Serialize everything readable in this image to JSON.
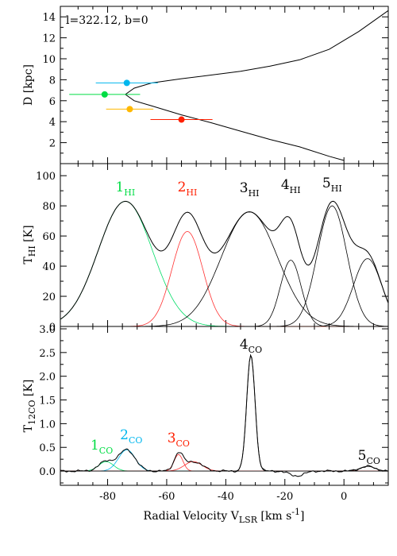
{
  "chart_data": [
    {
      "type": "line",
      "panel": "distance",
      "annotation": "l=322.12, b=0",
      "ylabel": "D [kpc]",
      "ylim": [
        0,
        15
      ],
      "xlim": [
        -96,
        15
      ],
      "yticks": [
        "2",
        "4",
        "6",
        "8",
        "10",
        "12",
        "14"
      ],
      "grid": false,
      "curve": [
        {
          "x": 15,
          "y": 14.6
        },
        {
          "x": 5,
          "y": 12.6
        },
        {
          "x": -5,
          "y": 10.9
        },
        {
          "x": -15,
          "y": 9.9
        },
        {
          "x": -25,
          "y": 9.3
        },
        {
          "x": -35,
          "y": 8.8
        },
        {
          "x": -45,
          "y": 8.45
        },
        {
          "x": -55,
          "y": 8.1
        },
        {
          "x": -65,
          "y": 7.7
        },
        {
          "x": -71,
          "y": 7.2
        },
        {
          "x": -74,
          "y": 6.6
        },
        {
          "x": -71,
          "y": 6.0
        },
        {
          "x": -65,
          "y": 5.5
        },
        {
          "x": -55,
          "y": 4.65
        },
        {
          "x": -45,
          "y": 3.9
        },
        {
          "x": -35,
          "y": 3.1
        },
        {
          "x": -25,
          "y": 2.3
        },
        {
          "x": -15,
          "y": 1.6
        },
        {
          "x": -5,
          "y": 0.7
        },
        {
          "x": 0,
          "y": 0.3
        }
      ],
      "points": [
        {
          "x": -73.5,
          "y": 7.7,
          "xerr": 10.5,
          "color": "#00b7ee"
        },
        {
          "x": -81,
          "y": 6.6,
          "xerr": 12,
          "color": "#00dd44"
        },
        {
          "x": -72.5,
          "y": 5.2,
          "xerr": 8,
          "color": "#ffb800"
        },
        {
          "x": -55,
          "y": 4.2,
          "xerr": 10.5,
          "color": "#ff1f00"
        }
      ]
    },
    {
      "type": "line",
      "panel": "HI",
      "ylabel_main": "T",
      "ylabel_sub": "HI",
      "ylabel_unit": " [K]",
      "ylim": [
        0,
        108
      ],
      "xlim": [
        -96,
        15
      ],
      "yticks": [
        "0",
        "20",
        "40",
        "60",
        "80",
        "100"
      ],
      "grid": false,
      "components": [
        {
          "amp": 83,
          "center": -74,
          "sigma": 9.2,
          "color": "#00dd66",
          "label": "1",
          "sub": "HI",
          "label_color": "#00dd44"
        },
        {
          "amp": 63,
          "center": -53,
          "sigma": 5.2,
          "color": "#ff3030",
          "label": "2",
          "sub": "HI",
          "label_color": "#ff1f00"
        },
        {
          "amp": 76,
          "center": -32,
          "sigma": 9.5,
          "color": "#000000",
          "label": "3",
          "sub": "HI",
          "label_color": "#000000"
        },
        {
          "amp": 44,
          "center": -18,
          "sigma": 3.5,
          "color": "#000000",
          "label": "4",
          "sub": "HI",
          "label_color": "#000000"
        },
        {
          "amp": 80,
          "center": -4,
          "sigma": 5.0,
          "color": "#000000",
          "label": "5",
          "sub": "HI",
          "label_color": "#000000"
        },
        {
          "amp": 45,
          "center": 8,
          "sigma": 4.8,
          "color": "#000000",
          "label": "",
          "sub": "",
          "label_color": "#000000"
        }
      ]
    },
    {
      "type": "line",
      "panel": "CO",
      "ylabel_main": "T",
      "ylabel_sub": "12CO",
      "ylabel_unit": " [K]",
      "ylim": [
        -0.3,
        3.05
      ],
      "xlim": [
        -96,
        15
      ],
      "yticks": [
        "0.0",
        "0.5",
        "1.0",
        "1.5",
        "2.0",
        "2.5",
        "3.0"
      ],
      "xticks": [
        "-80",
        "-60",
        "-40",
        "-20",
        "0"
      ],
      "xlabel_main": "Radial Velocity V",
      "xlabel_sub": "LSR",
      "xlabel_unit": " [km s",
      "xlabel_sup": "-1",
      "xlabel_end": "]",
      "grid": false,
      "components": [
        {
          "amp": 0.2,
          "center": -80.5,
          "sigma": 2.5,
          "color": "#00dd66",
          "label": "1",
          "sub": "CO",
          "label_color": "#00dd44"
        },
        {
          "amp": 0.45,
          "center": -73.5,
          "sigma": 2.8,
          "color": "#00b7ee",
          "label": "2",
          "sub": "CO",
          "label_color": "#00b7ee"
        },
        {
          "amp": 0.35,
          "center": -56,
          "sigma": 1.5,
          "color": "#ff3030",
          "label": "3",
          "sub": "CO",
          "label_color": "#ff1f00"
        },
        {
          "amp": 0.2,
          "center": -51,
          "sigma": 3.0,
          "color": "#ff3030",
          "label": "",
          "sub": "",
          "label_color": "#ff1f00"
        },
        {
          "amp": 2.45,
          "center": -31.5,
          "sigma": 1.4,
          "color": "#000000",
          "label": "4",
          "sub": "CO",
          "label_color": "#000000"
        },
        {
          "amp": 0.1,
          "center": 8,
          "sigma": 2.5,
          "color": "#000000",
          "label": "5",
          "sub": "CO",
          "label_color": "#000000"
        }
      ]
    }
  ]
}
